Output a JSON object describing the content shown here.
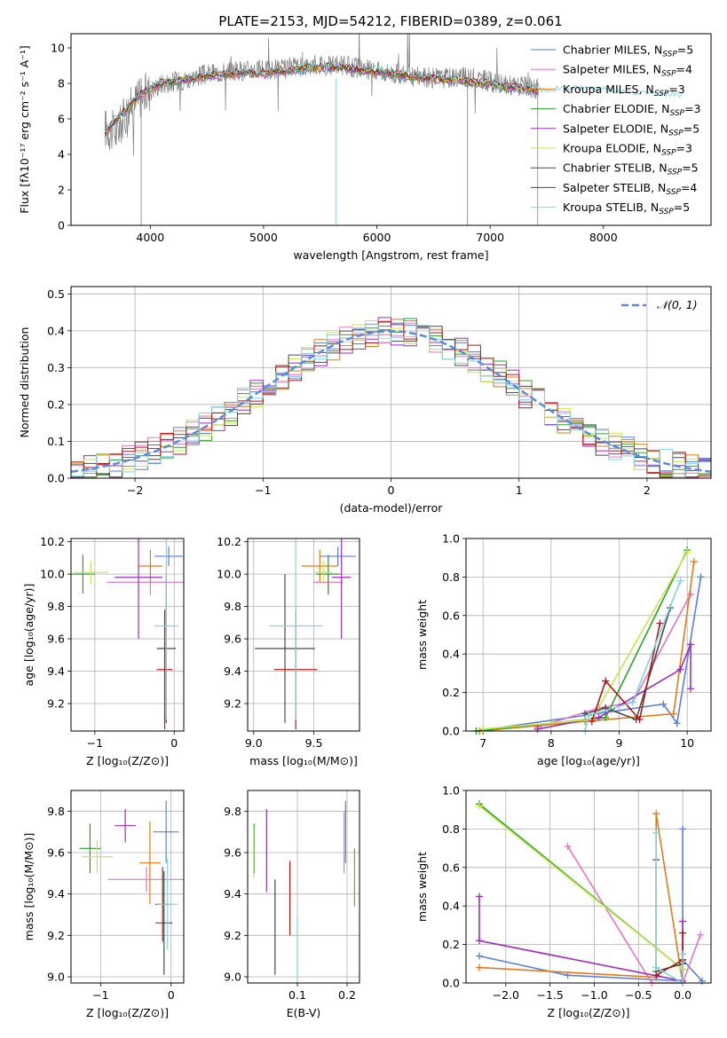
{
  "colors": [
    "#5b7fd9",
    "#e377c2",
    "#e07b1a",
    "#2ca02c",
    "#9b2fb6",
    "#c8e650",
    "#4a4a4a",
    "#b01818",
    "#7fd3e0"
  ],
  "chart_data": [
    {
      "id": "spectrum",
      "type": "line",
      "title": "PLATE=2153, MJD=54212, FIBERID=0389, z=0.061",
      "xlabel": "wavelength [Angstrom, rest frame]",
      "ylabel": "Flux [fλ10⁻¹⁷ erg cm⁻² s⁻¹ A⁻¹]",
      "xlim": [
        3300,
        8950
      ],
      "ylim": [
        0,
        10.8
      ],
      "xticks": [
        4000,
        5000,
        6000,
        7000,
        8000
      ],
      "yticks": [
        0,
        2,
        4,
        6,
        8,
        10
      ],
      "grid": false,
      "legend_position": "upper right",
      "data_x": [
        3600,
        3700,
        3800,
        3900,
        4000,
        4100,
        4200,
        4300,
        4400,
        4500,
        4600,
        4700,
        4800,
        4900,
        5000,
        5100,
        5200,
        5300,
        5400,
        5500,
        5600,
        5700,
        5800,
        5900,
        6000,
        6100,
        6200,
        6300,
        6400,
        6500,
        6600,
        6700,
        6800,
        6900,
        7000,
        7100,
        7200,
        7300,
        7400,
        7430
      ],
      "data_y": [
        5.5,
        5.2,
        6.5,
        7.2,
        7.6,
        8.0,
        8.1,
        8.2,
        8.4,
        8.5,
        8.6,
        8.7,
        8.7,
        8.8,
        8.7,
        8.8,
        8.8,
        8.9,
        9.0,
        9.1,
        9.0,
        9.0,
        8.9,
        8.8,
        8.7,
        8.6,
        8.5,
        8.4,
        8.4,
        8.3,
        8.3,
        8.4,
        8.3,
        8.3,
        8.1,
        7.9,
        7.9,
        7.8,
        7.7,
        7.7
      ],
      "model_y": [
        5.2,
        6.0,
        6.6,
        7.3,
        7.7,
        8.0,
        8.1,
        8.2,
        8.3,
        8.4,
        8.5,
        8.5,
        8.6,
        8.6,
        8.6,
        8.7,
        8.7,
        8.8,
        8.9,
        8.9,
        8.9,
        8.9,
        8.8,
        8.7,
        8.7,
        8.6,
        8.5,
        8.4,
        8.3,
        8.3,
        8.2,
        8.2,
        8.1,
        8.0,
        8.0,
        7.8,
        7.8,
        7.7,
        7.6,
        7.5
      ],
      "model_tail_x": [
        7430,
        7600,
        7800,
        8000,
        8200,
        8400,
        8600,
        8700
      ],
      "model_tail_y": [
        7.5,
        7.6,
        7.6,
        7.5,
        7.4,
        7.4,
        7.3,
        7.2
      ],
      "series_names": [
        "Chabrier MILES, N_SSP=5",
        "Salpeter MILES, N_SSP=4",
        "Kroupa MILES, N_SSP=3",
        "Chabrier ELODIE, N_SSP=3",
        "Salpeter ELODIE, N_SSP=5",
        "Kroupa ELODIE, N_SSP=3",
        "Chabrier STELIB, N_SSP=5",
        "Salpeter STELIB, N_SSP=4",
        "Kroupa STELIB, N_SSP=5"
      ],
      "legend": [
        {
          "base": "Chabrier MILES, N",
          "sub": "SSP",
          "tail": "=5"
        },
        {
          "base": "Salpeter MILES, N",
          "sub": "SSP",
          "tail": "=4"
        },
        {
          "base": "Kroupa MILES, N",
          "sub": "SSP",
          "tail": "=3"
        },
        {
          "base": "Chabrier ELODIE, N",
          "sub": "SSP",
          "tail": "=3"
        },
        {
          "base": "Salpeter ELODIE, N",
          "sub": "SSP",
          "tail": "=5"
        },
        {
          "base": "Kroupa ELODIE, N",
          "sub": "SSP",
          "tail": "=3"
        },
        {
          "base": "Chabrier STELIB, N",
          "sub": "SSP",
          "tail": "=5"
        },
        {
          "base": "Salpeter STELIB, N",
          "sub": "SSP",
          "tail": "=4"
        },
        {
          "base": "Kroupa STELIB, N",
          "sub": "SSP",
          "tail": "=5"
        }
      ]
    },
    {
      "id": "residuals",
      "type": "bar",
      "xlabel": "(data-model)/error",
      "ylabel": "Normed distribution",
      "xlim": [
        -2.5,
        2.5
      ],
      "ylim": [
        0,
        0.52
      ],
      "xticks": [
        -2,
        -1,
        0,
        1,
        2
      ],
      "xtick_labels": [
        "−2",
        "−1",
        "0",
        "1",
        "2"
      ],
      "yticks": [
        0,
        0.1,
        0.2,
        0.3,
        0.4,
        0.5
      ],
      "ytick_labels": [
        "0.0",
        "0.1",
        "0.2",
        "0.3",
        "0.4",
        "0.5"
      ],
      "grid": true,
      "legend_position": "upper right",
      "reference_label": "𝒩(0, 1)",
      "bin_width": 0.1,
      "bin_start": -2.5
    },
    {
      "id": "age_vs_Z",
      "type": "scatter",
      "xlabel": "Z [log₁₀(Z/Z⊙)]",
      "ylabel": "age  [log₁₀(age/yr)]",
      "xlim": [
        -1.3,
        0.12
      ],
      "ylim": [
        9.03,
        10.22
      ],
      "xticks": [
        -1,
        0
      ],
      "xtick_labels": [
        "−1",
        "0"
      ],
      "yticks": [
        9.2,
        9.4,
        9.6,
        9.8,
        10.0,
        10.2
      ],
      "ytick_labels": [
        "9.2",
        "9.4",
        "9.6",
        "9.8",
        "10.0",
        "10.2"
      ],
      "grid": true,
      "points": [
        {
          "x": -0.07,
          "xerr": 0.18,
          "y": 10.11,
          "yerr": 0.06
        },
        {
          "x": -0.3,
          "xerr": 0.55,
          "y": 9.95,
          "yerr": 0.08
        },
        {
          "x": -0.3,
          "xerr": 0.15,
          "y": 10.05,
          "yerr": 0.1
        },
        {
          "x": -1.15,
          "xerr": 0.15,
          "y": 10.0,
          "yerr": 0.12
        },
        {
          "x": -0.45,
          "xerr": 0.3,
          "y": 9.98,
          "yerr": 0.38
        },
        {
          "x": -1.05,
          "xerr": 0.22,
          "y": 10.01,
          "yerr": 0.07
        },
        {
          "x": -0.1,
          "xerr": 0.12,
          "y": 9.54,
          "yerr": 0.46
        },
        {
          "x": -0.12,
          "xerr": 0.1,
          "y": 9.41,
          "yerr": 0.37
        },
        {
          "x": -0.1,
          "xerr": 0.15,
          "y": 9.68,
          "yerr": 0.58
        }
      ]
    },
    {
      "id": "age_vs_mass",
      "type": "scatter",
      "xlabel": "mass [log₁₀(M/M⊙)]",
      "ylabel": "",
      "xlim": [
        8.95,
        9.88
      ],
      "ylim": [
        9.03,
        10.22
      ],
      "xticks": [
        9.0,
        9.5
      ],
      "xtick_labels": [
        "9.0",
        "9.5"
      ],
      "yticks": [
        9.2,
        9.4,
        9.6,
        9.8,
        10.0,
        10.2
      ],
      "ytick_labels": [
        "9.2",
        "9.4",
        "9.6",
        "9.8",
        "10.0",
        "10.2"
      ],
      "grid": true,
      "points": [
        {
          "x": 9.7,
          "xerr": 0.15,
          "y": 10.11,
          "yerr": 0.06
        },
        {
          "x": 9.62,
          "xerr": 0.12,
          "y": 9.95,
          "yerr": 0.08
        },
        {
          "x": 9.55,
          "xerr": 0.15,
          "y": 10.05,
          "yerr": 0.1
        },
        {
          "x": 9.62,
          "xerr": 0.1,
          "y": 10.0,
          "yerr": 0.12
        },
        {
          "x": 9.73,
          "xerr": 0.08,
          "y": 9.98,
          "yerr": 0.38
        },
        {
          "x": 9.58,
          "xerr": 0.08,
          "y": 10.01,
          "yerr": 0.07
        },
        {
          "x": 9.26,
          "xerr": 0.25,
          "y": 9.54,
          "yerr": 0.46
        },
        {
          "x": 9.35,
          "xerr": 0.18,
          "y": 9.41,
          "yerr": 0.37
        },
        {
          "x": 9.35,
          "xerr": 0.22,
          "y": 9.68,
          "yerr": 0.58
        }
      ]
    },
    {
      "id": "mw_vs_age",
      "type": "line",
      "xlabel": "age  [log₁₀(age/yr)]",
      "ylabel": "mass weight",
      "xlim": [
        6.75,
        10.35
      ],
      "ylim": [
        0,
        1.0
      ],
      "xticks": [
        7,
        8,
        9,
        10
      ],
      "xtick_labels": [
        "7",
        "8",
        "9",
        "10"
      ],
      "yticks": [
        0,
        0.2,
        0.4,
        0.6,
        0.8,
        1.0
      ],
      "ytick_labels": [
        "0.0",
        "0.2",
        "0.4",
        "0.6",
        "0.8",
        "1.0"
      ],
      "grid": true,
      "series": [
        {
          "x": [
            6.9,
            9.65,
            9.85,
            10.2
          ],
          "y": [
            0.0,
            0.14,
            0.04,
            0.8
          ]
        },
        {
          "x": [
            7.8,
            8.7,
            9.2,
            10.05
          ],
          "y": [
            0.02,
            0.12,
            0.15,
            0.71
          ]
        },
        {
          "x": [
            6.95,
            8.5,
            9.8,
            10.1
          ],
          "y": [
            0.0,
            0.05,
            0.09,
            0.88
          ]
        },
        {
          "x": [
            6.9,
            8.8,
            10.0
          ],
          "y": [
            0.0,
            0.07,
            0.94
          ]
        },
        {
          "x": [
            7.8,
            8.7,
            9.9,
            10.05,
            10.05
          ],
          "y": [
            0.01,
            0.07,
            0.32,
            0.45,
            0.22
          ]
        },
        {
          "x": [
            7.0,
            8.6,
            10.0
          ],
          "y": [
            0.01,
            0.06,
            0.93
          ]
        },
        {
          "x": [
            8.5,
            8.8,
            9.25,
            9.75
          ],
          "y": [
            0.09,
            0.12,
            0.06,
            0.64
          ]
        },
        {
          "x": [
            8.6,
            8.8,
            9.3,
            9.6
          ],
          "y": [
            0.05,
            0.26,
            0.06,
            0.56
          ]
        },
        {
          "x": [
            8.5,
            8.55,
            9.2,
            9.9
          ],
          "y": [
            0.0,
            0.08,
            0.15,
            0.78
          ]
        }
      ]
    },
    {
      "id": "mass_vs_Z",
      "type": "scatter",
      "xlabel": "Z [log₁₀(Z/Z⊙)]",
      "ylabel": "mass [log₁₀(M/M⊙)]",
      "xlim": [
        -1.42,
        0.18
      ],
      "ylim": [
        8.97,
        9.9
      ],
      "xticks": [
        -1,
        0
      ],
      "xtick_labels": [
        "−1",
        "0"
      ],
      "yticks": [
        9.0,
        9.2,
        9.4,
        9.6,
        9.8
      ],
      "ytick_labels": [
        "9.0",
        "9.2",
        "9.4",
        "9.6",
        "9.8"
      ],
      "grid": true,
      "points": [
        {
          "x": -0.07,
          "xerr": 0.18,
          "y": 9.7,
          "yerr": 0.15
        },
        {
          "x": -0.35,
          "xerr": 0.55,
          "y": 9.47,
          "yerr": 0.06
        },
        {
          "x": -0.3,
          "xerr": 0.15,
          "y": 9.55,
          "yerr": 0.2
        },
        {
          "x": -1.15,
          "xerr": 0.15,
          "y": 9.62,
          "yerr": 0.12
        },
        {
          "x": -0.65,
          "xerr": 0.15,
          "y": 9.73,
          "yerr": 0.08
        },
        {
          "x": -1.05,
          "xerr": 0.22,
          "y": 9.58,
          "yerr": 0.08
        },
        {
          "x": -0.1,
          "xerr": 0.12,
          "y": 9.26,
          "yerr": 0.25
        },
        {
          "x": -0.12,
          "xerr": 0.1,
          "y": 9.35,
          "yerr": 0.18
        },
        {
          "x": -0.05,
          "xerr": 0.15,
          "y": 9.35,
          "yerr": 0.22
        }
      ]
    },
    {
      "id": "mass_vs_ebv",
      "type": "scatter",
      "xlabel": "E(B-V)",
      "ylabel": "",
      "xlim": [
        0.0,
        0.225
      ],
      "ylim": [
        8.97,
        9.9
      ],
      "xticks": [
        0.1,
        0.2
      ],
      "xtick_labels": [
        "0.1",
        "0.2"
      ],
      "yticks": [
        9.0,
        9.2,
        9.4,
        9.6,
        9.8
      ],
      "ytick_labels": [
        "9.0",
        "9.2",
        "9.4",
        "9.6",
        "9.8"
      ],
      "grid": true,
      "points": [
        {
          "x": 0.197,
          "y": 9.7,
          "yerr": 0.15
        },
        {
          "x": 0.194,
          "y": 9.65,
          "yerr": 0.15
        },
        {
          "x": 0.215,
          "y": 9.48,
          "yerr": 0.14
        },
        {
          "x": 0.013,
          "y": 9.62,
          "yerr": 0.12
        },
        {
          "x": 0.038,
          "y": 9.61,
          "yerr": 0.2
        },
        {
          "x": 0.012,
          "y": 9.6,
          "yerr": 0.12
        },
        {
          "x": 0.055,
          "y": 9.24,
          "yerr": 0.23
        },
        {
          "x": 0.085,
          "y": 9.38,
          "yerr": 0.18
        },
        {
          "x": 0.1,
          "y": 9.05,
          "yerr": 0.25
        }
      ]
    },
    {
      "id": "mw_vs_Z",
      "type": "line",
      "xlabel": "Z [log₁₀(Z/Z⊙)]",
      "ylabel": "mass weight",
      "xlim": [
        -2.45,
        0.32
      ],
      "ylim": [
        0,
        1.0
      ],
      "xticks": [
        -2.0,
        -1.5,
        -1.0,
        -0.5,
        0.0
      ],
      "xtick_labels": [
        "−2.0",
        "−1.5",
        "−1.0",
        "−0.5",
        "0.0"
      ],
      "yticks": [
        0,
        0.2,
        0.4,
        0.6,
        0.8,
        1.0
      ],
      "ytick_labels": [
        "0.0",
        "0.2",
        "0.4",
        "0.6",
        "0.8",
        "1.0"
      ],
      "grid": true,
      "series": [
        {
          "x": [
            -2.3,
            -1.3,
            0.0,
            0.0,
            0.0,
            0.22
          ],
          "y": [
            0.14,
            0.04,
            0.01,
            0.8,
            0.12,
            0.01
          ]
        },
        {
          "x": [
            -1.3,
            -0.35,
            0.0,
            0.2
          ],
          "y": [
            0.71,
            0.0,
            0.0,
            0.25
          ]
        },
        {
          "x": [
            -2.3,
            -0.3,
            -0.3,
            0.0
          ],
          "y": [
            0.08,
            0.03,
            0.88,
            0.0
          ]
        },
        {
          "x": [
            -2.3,
            0.0
          ],
          "y": [
            0.93,
            0.07
          ]
        },
        {
          "x": [
            -2.3,
            -2.3,
            0.0,
            0.0
          ],
          "y": [
            0.45,
            0.22,
            0.01,
            0.32
          ]
        },
        {
          "x": [
            -2.3,
            0.0
          ],
          "y": [
            0.92,
            0.07
          ]
        },
        {
          "x": [
            -0.3,
            -0.3,
            0.0
          ],
          "y": [
            0.64,
            0.06,
            0.1
          ]
        },
        {
          "x": [
            -0.3,
            0.0,
            0.0
          ],
          "y": [
            0.04,
            0.12,
            0.26
          ]
        },
        {
          "x": [
            -0.3,
            -0.3,
            0.0,
            0.0
          ],
          "y": [
            0.78,
            0.08,
            0.0,
            0.15
          ]
        }
      ]
    }
  ]
}
